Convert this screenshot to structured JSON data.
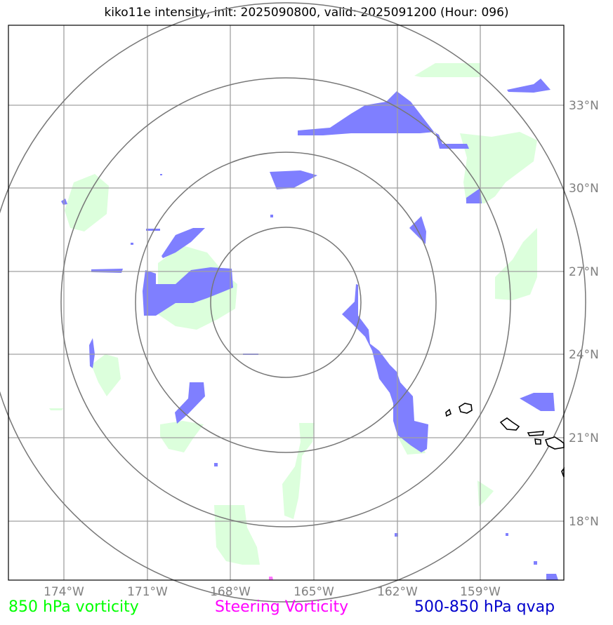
{
  "title": "kiko11e intensity, init: 2025090800, valid: 2025091200 (Hour: 096)",
  "map": {
    "lon_labels": [
      "174°W",
      "171°W",
      "168°W",
      "165°W",
      "162°W",
      "159°W"
    ],
    "lat_labels": [
      "33°N",
      "30°N",
      "27°N",
      "24°N",
      "21°N",
      "18°N"
    ],
    "range_rings_count": 4
  },
  "legend": {
    "vorticity_850": "850 hPa vorticity",
    "steering_vorticity": "Steering Vorticity",
    "qvap_500_850": "500-850 hPa qvap"
  },
  "colors": {
    "vorticity_850": "#00ff00",
    "steering_vorticity": "#ff00ff",
    "qvap_500_850": "#0000cc",
    "green_fill": "#dcffdc",
    "blue_fill": "#7f7fff",
    "grid": "#808080"
  }
}
